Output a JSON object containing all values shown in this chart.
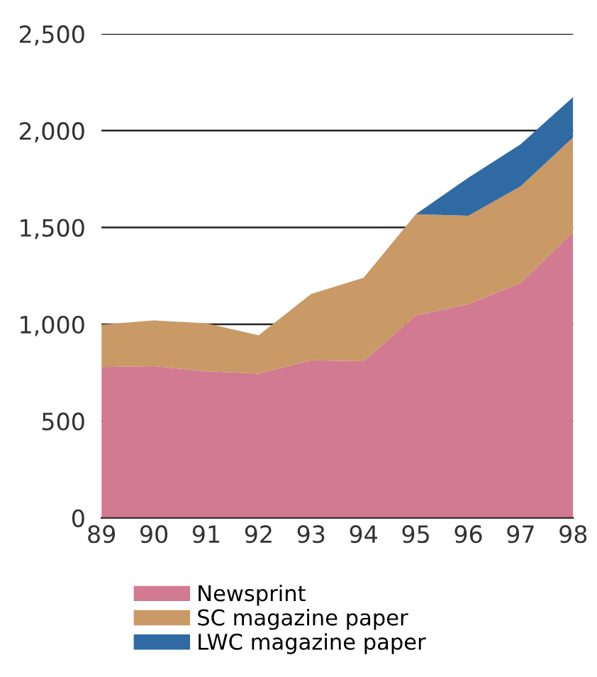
{
  "chart_data": {
    "type": "area",
    "stacked": true,
    "x": [
      89,
      90,
      91,
      92,
      93,
      94,
      95,
      96,
      97,
      98
    ],
    "xlim": [
      89,
      98
    ],
    "xticks": [
      89,
      90,
      91,
      92,
      93,
      94,
      95,
      96,
      97,
      98
    ],
    "ylim": [
      0,
      2500
    ],
    "yticks": [
      {
        "value": 0,
        "label": "0"
      },
      {
        "value": 500,
        "label": "500"
      },
      {
        "value": 1000,
        "label": "1,000"
      },
      {
        "value": 1500,
        "label": "1,500"
      },
      {
        "value": 2000,
        "label": "2,000"
      },
      {
        "value": 2500,
        "label": "2,500"
      }
    ],
    "grid": "y",
    "legend": "bottom",
    "series": [
      {
        "name": "Newsprint",
        "color": "#d27a92",
        "values": [
          779,
          784,
          757,
          745,
          814,
          809,
          1046,
          1103,
          1213,
          1476
        ]
      },
      {
        "name": "SC magazine paper",
        "color": "#c99a66",
        "values": [
          219,
          236,
          248,
          198,
          343,
          431,
          523,
          458,
          500,
          490
        ]
      },
      {
        "name": "LWC magazine paper",
        "color": "#2f6aa3",
        "values": [
          null,
          null,
          null,
          null,
          null,
          null,
          0,
          196,
          217,
          208
        ]
      }
    ]
  }
}
